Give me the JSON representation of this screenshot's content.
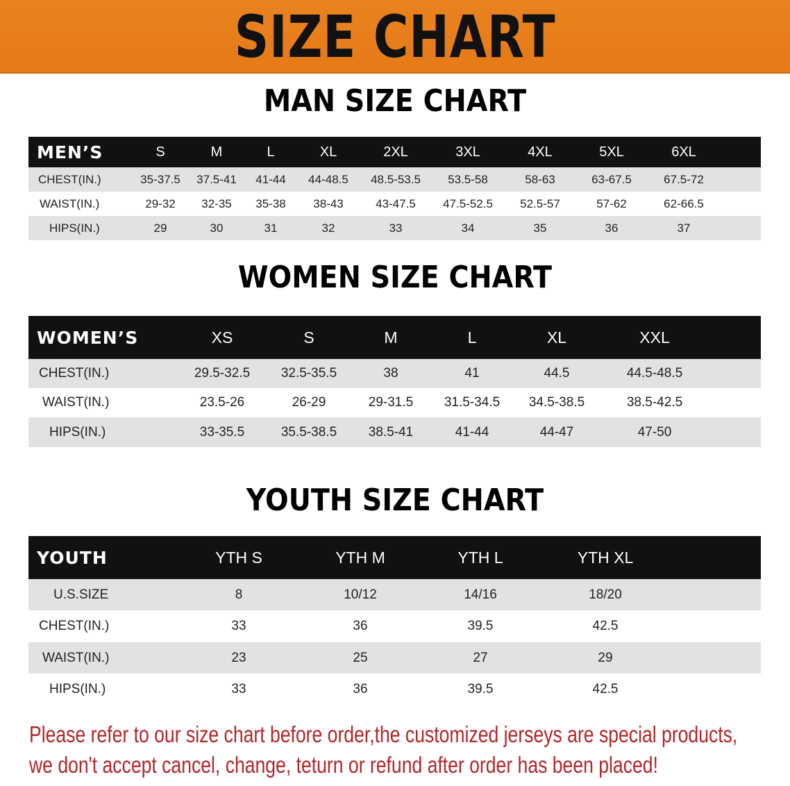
{
  "banner_title": "SIZE CHART",
  "colors": {
    "banner": "#e87e1e",
    "header_row": "#111111",
    "stripe": "#e2e2e2",
    "notice": "#b3262a"
  },
  "men": {
    "title": "MAN SIZE CHART",
    "header_label": "MEN’S",
    "sizes": [
      "S",
      "M",
      "L",
      "XL",
      "2XL",
      "3XL",
      "4XL",
      "5XL",
      "6XL"
    ],
    "rows": [
      {
        "label": "CHEST(IN.)",
        "values": [
          "35-37.5",
          "37.5-41",
          "41-44",
          "44-48.5",
          "48.5-53.5",
          "53.5-58",
          "58-63",
          "63-67.5",
          "67.5-72"
        ]
      },
      {
        "label": "WAIST(IN.)",
        "values": [
          "29-32",
          "32-35",
          "35-38",
          "38-43",
          "43-47.5",
          "47.5-52.5",
          "52.5-57",
          "57-62",
          "62-66.5"
        ]
      },
      {
        "label": "HIPS(IN.)",
        "values": [
          "29",
          "30",
          "31",
          "32",
          "33",
          "34",
          "35",
          "36",
          "37"
        ]
      }
    ]
  },
  "women": {
    "title": "WOMEN SIZE CHART",
    "header_label": "WOMEN’S",
    "sizes": [
      "XS",
      "S",
      "M",
      "L",
      "XL",
      "XXL"
    ],
    "rows": [
      {
        "label": "CHEST(IN.)",
        "values": [
          "29.5-32.5",
          "32.5-35.5",
          "38",
          "41",
          "44.5",
          "44.5-48.5"
        ]
      },
      {
        "label": "WAIST(IN.)",
        "values": [
          "23.5-26",
          "26-29",
          "29-31.5",
          "31.5-34.5",
          "34.5-38.5",
          "38.5-42.5"
        ]
      },
      {
        "label": "HIPS(IN.)",
        "values": [
          "33-35.5",
          "35.5-38.5",
          "38.5-41",
          "41-44",
          "44-47",
          "47-50"
        ]
      }
    ]
  },
  "youth": {
    "title": "YOUTH SIZE CHART",
    "header_label": "YOUTH",
    "sizes": [
      "YTH S",
      "YTH M",
      "YTH L",
      "YTH XL"
    ],
    "rows": [
      {
        "label": "U.S.SIZE",
        "values": [
          "8",
          "10/12",
          "14/16",
          "18/20"
        ]
      },
      {
        "label": "CHEST(IN.)",
        "values": [
          "33",
          "36",
          "39.5",
          "42.5"
        ]
      },
      {
        "label": "WAIST(IN.)",
        "values": [
          "23",
          "25",
          "27",
          "29"
        ]
      },
      {
        "label": "HIPS(IN.)",
        "values": [
          "33",
          "36",
          "39.5",
          "42.5"
        ]
      }
    ]
  },
  "notice": {
    "line1": "Please refer to our size chart before order,the customized jerseys are special products,",
    "line2": "we don't accept cancel, change, teturn or refund after order has been placed!"
  }
}
